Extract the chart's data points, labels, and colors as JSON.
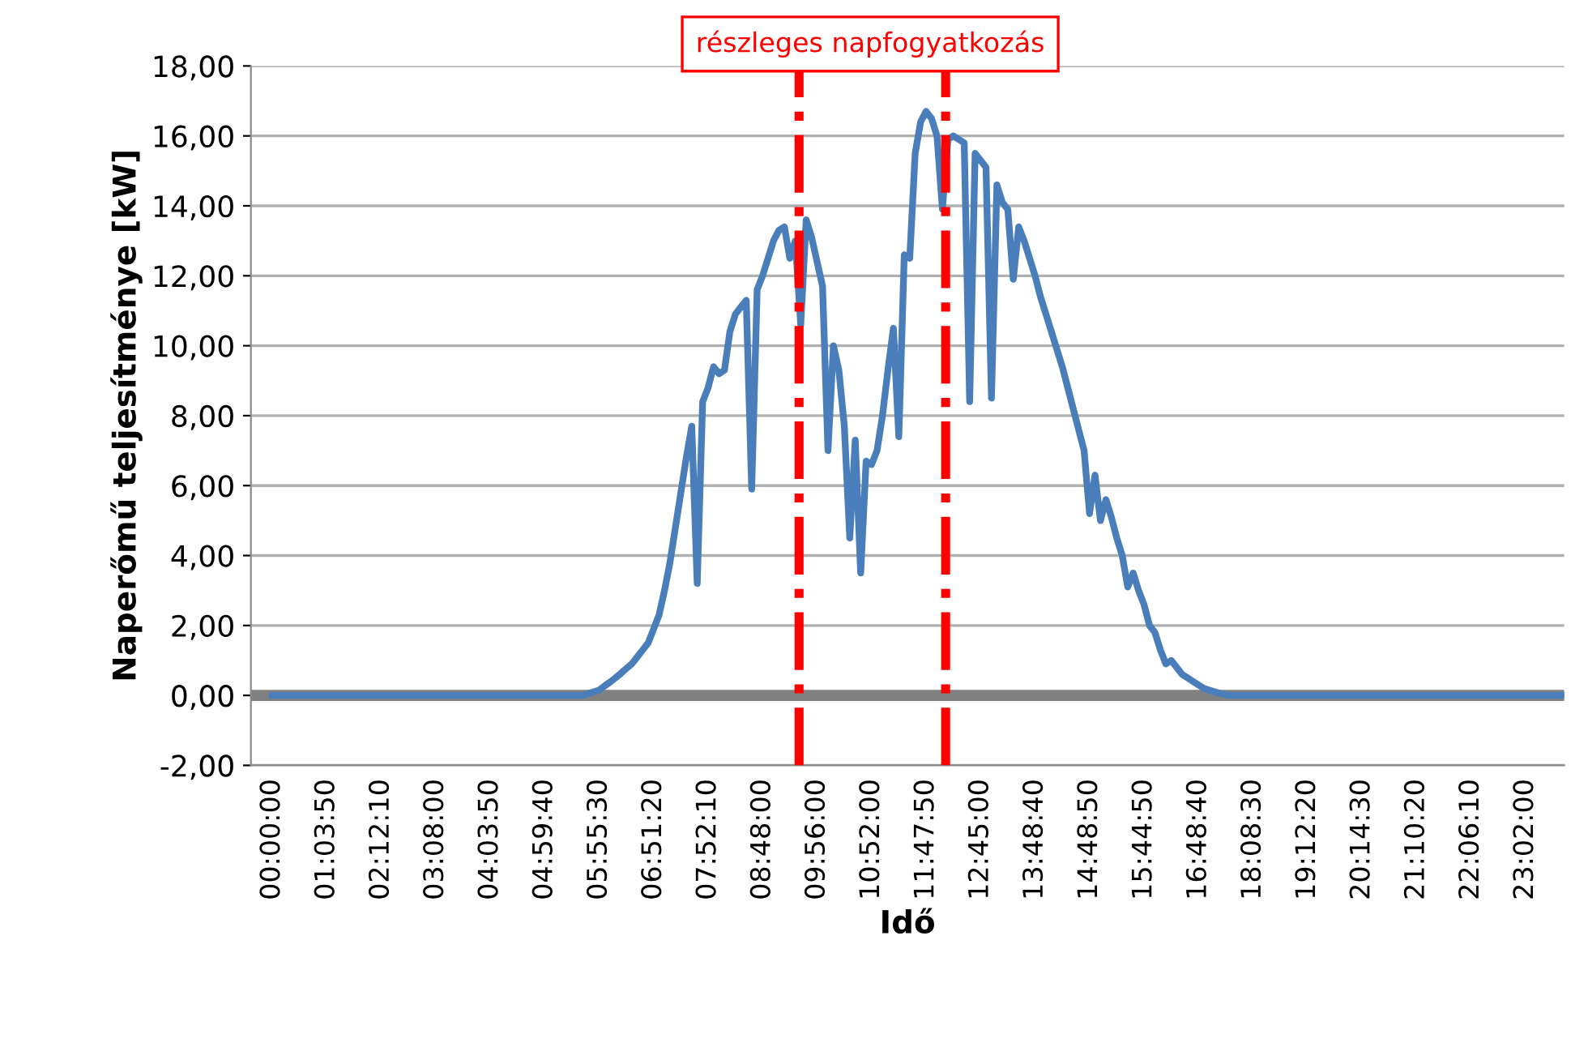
{
  "chart_data": {
    "type": "line",
    "xlabel": "Idő",
    "ylabel": "Naperőmű teljesítménye [kW]",
    "annotations": [
      "részleges napfogyatkozás"
    ],
    "ylim": [
      -2,
      18
    ],
    "categories": [
      "00:00:00",
      null,
      null,
      null,
      null,
      null,
      null,
      null,
      null,
      null,
      "01:03:50",
      null,
      null,
      null,
      null,
      null,
      null,
      null,
      null,
      null,
      "02:12:10",
      null,
      null,
      null,
      null,
      null,
      null,
      null,
      null,
      null,
      "03:08:00",
      null,
      null,
      null,
      null,
      null,
      null,
      null,
      null,
      null,
      "04:03:50",
      null,
      null,
      null,
      null,
      null,
      null,
      null,
      null,
      null,
      "04:59:40",
      null,
      null,
      null,
      null,
      null,
      null,
      null,
      null,
      null,
      "05:55:30",
      null,
      null,
      null,
      null,
      null,
      null,
      null,
      null,
      null,
      "06:51:20",
      null,
      null,
      null,
      null,
      null,
      null,
      null,
      null,
      null,
      "07:52:10",
      null,
      null,
      null,
      null,
      null,
      null,
      null,
      null,
      null,
      "08:48:00",
      null,
      null,
      null,
      null,
      null,
      null,
      null,
      null,
      null,
      "09:56:00",
      null,
      null,
      null,
      null,
      null,
      null,
      null,
      null,
      null,
      "10:52:00",
      null,
      null,
      null,
      null,
      null,
      null,
      null,
      null,
      null,
      "11:47:50",
      null,
      null,
      null,
      null,
      null,
      null,
      null,
      null,
      null,
      "12:45:00",
      null,
      null,
      null,
      null,
      null,
      null,
      null,
      null,
      null,
      "13:48:40",
      null,
      null,
      null,
      null,
      null,
      null,
      null,
      null,
      null,
      "14:48:50",
      null,
      null,
      null,
      null,
      null,
      null,
      null,
      null,
      null,
      "15:44:50",
      null,
      null,
      null,
      null,
      null,
      null,
      null,
      null,
      null,
      "16:48:40",
      null,
      null,
      null,
      null,
      null,
      null,
      null,
      null,
      null,
      "18:08:30",
      null,
      null,
      null,
      null,
      null,
      null,
      null,
      null,
      null,
      "19:12:20",
      null,
      null,
      null,
      null,
      null,
      null,
      null,
      null,
      null,
      "20:14:30",
      null,
      null,
      null,
      null,
      null,
      null,
      null,
      null,
      null,
      "21:10:20",
      null,
      null,
      null,
      null,
      null,
      null,
      null,
      null,
      null,
      "22:06:10",
      null,
      null,
      null,
      null,
      null,
      null,
      null,
      null,
      null,
      "23:02:00",
      null,
      null,
      null,
      null,
      null,
      null,
      null
    ],
    "yticks": [
      {
        "value": -2,
        "label": "-2,00"
      },
      {
        "value": 0,
        "label": "0,00"
      },
      {
        "value": 2,
        "label": "2,00"
      },
      {
        "value": 4,
        "label": "4,00"
      },
      {
        "value": 6,
        "label": "6,00"
      },
      {
        "value": 8,
        "label": "8,00"
      },
      {
        "value": 10,
        "label": "10,00"
      },
      {
        "value": 12,
        "label": "12,00"
      },
      {
        "value": 14,
        "label": "14,00"
      },
      {
        "value": 16,
        "label": "16,00"
      },
      {
        "value": 18,
        "label": "18,00"
      }
    ],
    "grid": "y",
    "marker": "none",
    "line_style": "solid",
    "ref_lines": [
      {
        "axis": "y",
        "value": 0,
        "color": "#808080",
        "line_style": "solid"
      }
    ],
    "series": [
      {
        "color": "#4a7ebb",
        "values": [
          0,
          0,
          0,
          0,
          0,
          0,
          0,
          0,
          0,
          0,
          0,
          0,
          0,
          0,
          0,
          0,
          0,
          0,
          0,
          0,
          0,
          0,
          0,
          0,
          0,
          0,
          0,
          0,
          0,
          0,
          0,
          0,
          0,
          0,
          0,
          0,
          0,
          0,
          0,
          0,
          0,
          0,
          0,
          0,
          0,
          0,
          0,
          0,
          0,
          0,
          0,
          0,
          0,
          0,
          0,
          0,
          0,
          0,
          0.05,
          0.1,
          0.15,
          0.27,
          0.38,
          0.5,
          0.63,
          0.77,
          0.9,
          1.1,
          1.3,
          1.5,
          1.9,
          2.3,
          3.0,
          3.8,
          4.8,
          5.8,
          6.8,
          7.7,
          3.2,
          8.4,
          8.8,
          9.4,
          9.2,
          9.3,
          10.4,
          10.9,
          11.1,
          11.3,
          5.9,
          11.6,
          12.0,
          12.5,
          13.0,
          13.3,
          13.4,
          12.5,
          13.0,
          10.6,
          13.6,
          13.1,
          12.4,
          11.7,
          7.0,
          10.0,
          9.3,
          7.7,
          4.5,
          7.3,
          3.5,
          6.7,
          6.6,
          7.0,
          8.0,
          9.3,
          10.5,
          7.4,
          12.6,
          12.5,
          15.5,
          16.4,
          16.7,
          16.5,
          16.0,
          13.9,
          15.9,
          16.0,
          15.9,
          15.8,
          8.4,
          15.5,
          15.3,
          15.1,
          8.5,
          14.6,
          14.1,
          13.9,
          11.9,
          13.4,
          13.0,
          12.5,
          12.0,
          11.4,
          10.9,
          10.4,
          9.9,
          9.4,
          8.8,
          8.2,
          7.6,
          7.0,
          5.2,
          6.3,
          5.0,
          5.6,
          5.1,
          4.5,
          4.0,
          3.1,
          3.5,
          3.0,
          2.6,
          2.0,
          1.8,
          1.3,
          0.9,
          1.0,
          0.8,
          0.6,
          0.5,
          0.4,
          0.3,
          0.2,
          0.15,
          0.1,
          0.05,
          0.02,
          0,
          0,
          0,
          0,
          0,
          0,
          0,
          0,
          0,
          0,
          0,
          0,
          0,
          0,
          0,
          0,
          0,
          0,
          0,
          0,
          0,
          0,
          0,
          0,
          0,
          0,
          0,
          0,
          0,
          0,
          0,
          0,
          0,
          0,
          0,
          0,
          0,
          0,
          0,
          0,
          0,
          0,
          0,
          0,
          0,
          0,
          0,
          0,
          0,
          0,
          0,
          0,
          0,
          0,
          0,
          0,
          0,
          0,
          0,
          0,
          0,
          0
        ]
      }
    ]
  }
}
